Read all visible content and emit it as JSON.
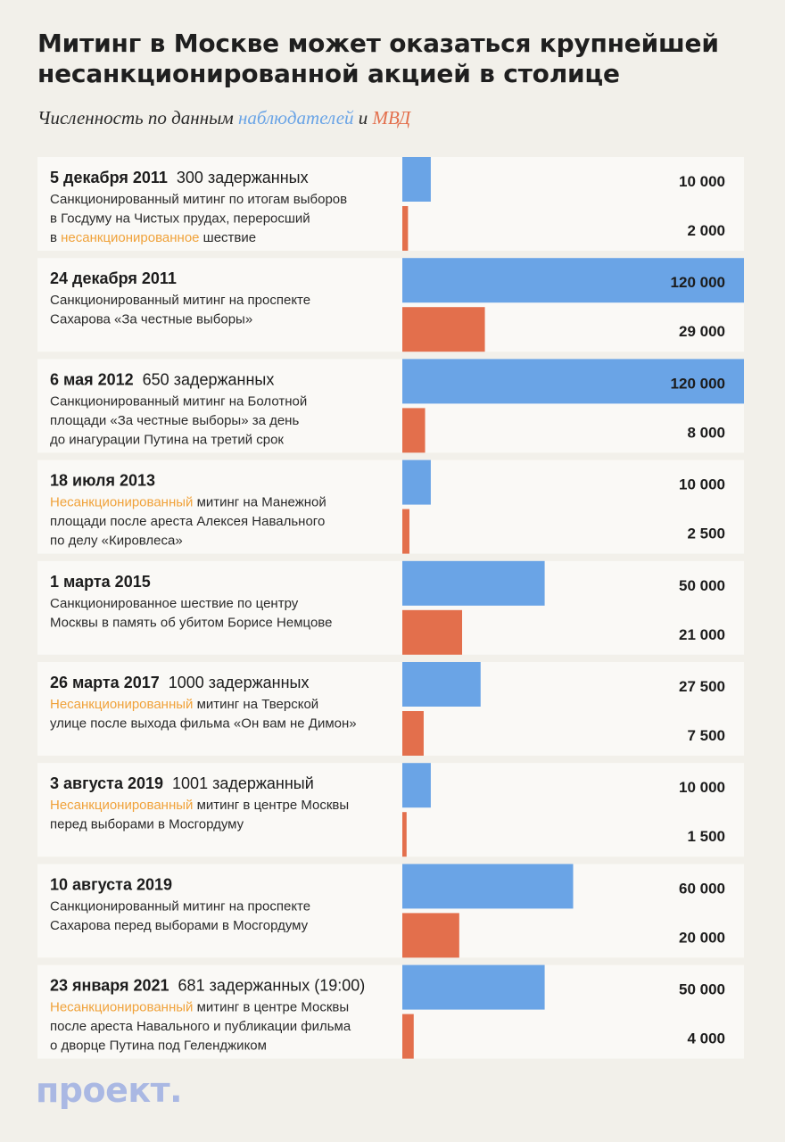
{
  "title": "Митинг в Москве может оказаться крупнейшей несанкционированной акцией в столице",
  "subtitle": {
    "prefix": "Численность по данным ",
    "observers": "наблюдателей",
    "and": " и ",
    "mvd": "МВД"
  },
  "logo": "проект.",
  "colors": {
    "observers": "#6aa4e6",
    "mvd": "#e36f4c",
    "highlight": "#f0a23a",
    "card": "#faf9f6"
  },
  "chart_data": {
    "type": "bar",
    "orientation": "horizontal",
    "xlim": [
      0,
      120000
    ],
    "series": [
      {
        "name": "наблюдателей",
        "values": [
          10000,
          120000,
          120000,
          10000,
          50000,
          27500,
          10000,
          60000,
          50000
        ]
      },
      {
        "name": "МВД",
        "values": [
          2000,
          29000,
          8000,
          2500,
          21000,
          7500,
          1500,
          20000,
          4000
        ]
      }
    ],
    "events": [
      {
        "date": "5 декабря 2011",
        "detained": "300 задержанных",
        "desc_lines": [
          [
            {
              "t": "Санкционированный митинг по итогам выборов"
            }
          ],
          [
            {
              "t": "в Госдуму на Чистых прудах, переросший"
            }
          ],
          [
            {
              "t": "в "
            },
            {
              "t": "несанкционированное",
              "hl": true
            },
            {
              "t": " шествие"
            }
          ]
        ],
        "observers_label": "10 000",
        "mvd_label": "2 000"
      },
      {
        "date": "24 декабря 2011",
        "detained": "",
        "desc_lines": [
          [
            {
              "t": "Санкционированный митинг на проспекте"
            }
          ],
          [
            {
              "t": "Сахарова «За честные выборы»"
            }
          ]
        ],
        "observers_label": "120 000",
        "mvd_label": "29 000"
      },
      {
        "date": "6 мая 2012",
        "detained": "650 задержанных",
        "desc_lines": [
          [
            {
              "t": "Санкционированный митинг на Болотной"
            }
          ],
          [
            {
              "t": "площади «За честные выборы» за день"
            }
          ],
          [
            {
              "t": "до инагурации Путина на третий срок"
            }
          ]
        ],
        "observers_label": "120 000",
        "mvd_label": "8 000"
      },
      {
        "date": "18 июля 2013",
        "detained": "",
        "desc_lines": [
          [
            {
              "t": "Несанкционированный",
              "hl": true
            },
            {
              "t": " митинг на Манежной"
            }
          ],
          [
            {
              "t": "площади после ареста Алексея Навального"
            }
          ],
          [
            {
              "t": "по делу «Кировлеса»"
            }
          ]
        ],
        "observers_label": "10 000",
        "mvd_label": "2 500"
      },
      {
        "date": "1 марта 2015",
        "detained": "",
        "desc_lines": [
          [
            {
              "t": "Санкционированное шествие по центру"
            }
          ],
          [
            {
              "t": "Москвы в память об убитом Борисе Немцове"
            }
          ]
        ],
        "observers_label": "50 000",
        "mvd_label": "21 000"
      },
      {
        "date": "26 марта 2017",
        "detained": "1000 задержанных",
        "desc_lines": [
          [
            {
              "t": "Несанкционированный",
              "hl": true
            },
            {
              "t": " митинг на Тверской"
            }
          ],
          [
            {
              "t": "улице после выхода фильма «Он вам не Димон»"
            }
          ]
        ],
        "observers_label": "27 500",
        "mvd_label": "7 500"
      },
      {
        "date": "3 августа 2019",
        "detained": "1001 задержанный",
        "desc_lines": [
          [
            {
              "t": "Несанкционированный",
              "hl": true
            },
            {
              "t": " митинг в центре Москвы"
            }
          ],
          [
            {
              "t": "перед выборами в Мосгордуму"
            }
          ]
        ],
        "observers_label": "10 000",
        "mvd_label": "1 500"
      },
      {
        "date": "10 августа 2019",
        "detained": "",
        "desc_lines": [
          [
            {
              "t": "Санкционированный митинг на проспекте"
            }
          ],
          [
            {
              "t": "Сахарова перед выборами в Мосгордуму"
            }
          ]
        ],
        "observers_label": "60 000",
        "mvd_label": "20 000"
      },
      {
        "date": "23 января 2021",
        "detained": "681 задержанных (19:00)",
        "desc_lines": [
          [
            {
              "t": "Несанкционированный",
              "hl": true
            },
            {
              "t": " митинг в центре Москвы"
            }
          ],
          [
            {
              "t": "после ареста Навального и публикации фильма"
            }
          ],
          [
            {
              "t": "о дворце Путина под Геленджиком"
            }
          ]
        ],
        "observers_label": "50 000",
        "mvd_label": "4 000"
      }
    ]
  }
}
